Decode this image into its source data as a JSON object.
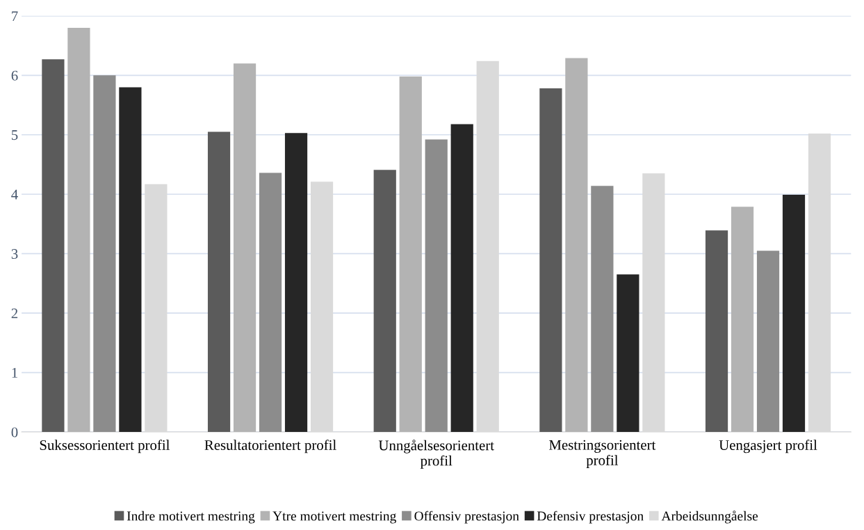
{
  "chart_data": {
    "type": "bar",
    "categories": [
      "Suksessorientert profil",
      "Resultatorientert profil",
      "Unngåelsesorientert\nprofil",
      "Mestringsorientert\nprofil",
      "Uengasjert profil"
    ],
    "series": [
      {
        "name": "Indre motivert mestring",
        "color": "#5b5b5b",
        "values": [
          6.27,
          5.05,
          4.41,
          5.78,
          3.39
        ]
      },
      {
        "name": "Ytre motivert mestring",
        "color": "#b3b3b3",
        "values": [
          6.8,
          6.2,
          5.98,
          6.29,
          3.79
        ]
      },
      {
        "name": "Offensiv prestasjon",
        "color": "#8c8c8c",
        "values": [
          6.0,
          4.36,
          4.92,
          4.14,
          3.05
        ]
      },
      {
        "name": "Defensiv prestasjon",
        "color": "#262626",
        "values": [
          5.8,
          5.03,
          5.18,
          2.65,
          3.99
        ]
      },
      {
        "name": "Arbeidsunngåelse",
        "color": "#dadada",
        "values": [
          4.17,
          4.21,
          6.24,
          4.35,
          5.02
        ]
      }
    ],
    "ylim": [
      0,
      7
    ],
    "yticks": [
      0,
      1,
      2,
      3,
      4,
      5,
      6,
      7
    ],
    "grid": "y",
    "legend": "bottom"
  }
}
